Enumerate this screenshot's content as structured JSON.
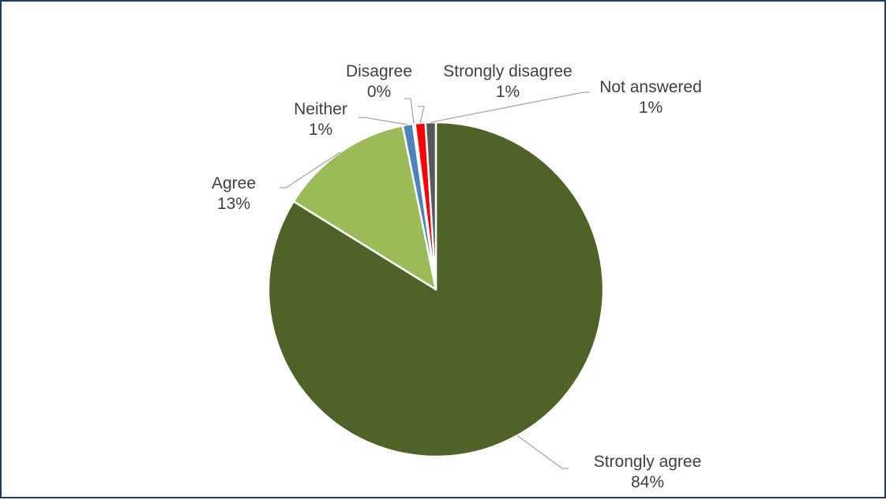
{
  "chart_data": {
    "type": "pie",
    "title": "",
    "start_angle_deg": 0,
    "direction": "clockwise",
    "slices": [
      {
        "label": "Strongly agree",
        "value": 84,
        "pct_label": "84%",
        "color": "#4f6228"
      },
      {
        "label": "Agree",
        "value": 13,
        "pct_label": "13%",
        "color": "#9bbb59"
      },
      {
        "label": "Neither",
        "value": 1,
        "pct_label": "1%",
        "color": "#4f81bd"
      },
      {
        "label": "Disagree",
        "value": 0.2,
        "pct_label": "0%",
        "color": "#7f7f7f"
      },
      {
        "label": "Strongly disagree",
        "value": 1,
        "pct_label": "1%",
        "color": "#ff0000"
      },
      {
        "label": "Not answered",
        "value": 1,
        "pct_label": "1%",
        "color": "#595959"
      }
    ],
    "legend": "none",
    "data_labels": "outside-with-leaders"
  }
}
